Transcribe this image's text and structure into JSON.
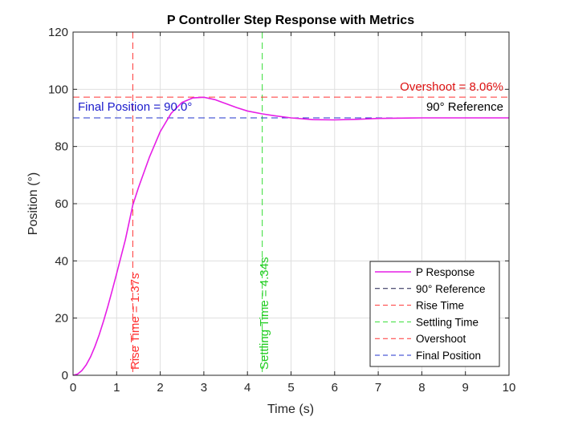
{
  "chart_data": {
    "type": "line",
    "title": "P Controller Step Response with Metrics",
    "xlabel": "Time (s)",
    "ylabel": "Position (°)",
    "xlim": [
      0,
      10
    ],
    "ylim": [
      0,
      120
    ],
    "xticks": [
      0,
      1,
      2,
      3,
      4,
      5,
      6,
      7,
      8,
      9,
      10
    ],
    "yticks": [
      0,
      20,
      40,
      60,
      80,
      100,
      120
    ],
    "grid": true,
    "legend_position": "bottom-right",
    "series": [
      {
        "name": "P Response",
        "color": "#e61ee6",
        "x": [
          0,
          0.1,
          0.2,
          0.3,
          0.4,
          0.5,
          0.6,
          0.7,
          0.8,
          0.9,
          1.0,
          1.2,
          1.37,
          1.5,
          1.75,
          2.0,
          2.25,
          2.5,
          2.75,
          3.0,
          3.25,
          3.5,
          3.75,
          4.0,
          4.34,
          4.6,
          5.0,
          5.5,
          6.0,
          6.5,
          7.0,
          8.0,
          9.0,
          10.0
        ],
        "y": [
          0,
          0.4,
          1.6,
          3.6,
          6.4,
          10.0,
          14.2,
          19.0,
          24.2,
          29.8,
          35.6,
          47.4,
          59.5,
          65.6,
          76.2,
          85.2,
          91.6,
          95.4,
          97.0,
          97.2,
          96.4,
          95.0,
          93.6,
          92.4,
          91.4,
          90.8,
          90.0,
          89.4,
          89.3,
          89.5,
          89.8,
          90.0,
          90.0,
          90.0
        ]
      }
    ],
    "reference_lines": [
      {
        "name": "90° Reference",
        "orientation": "horizontal",
        "value": 90,
        "color": "#1f1f4d",
        "style": "dashed"
      },
      {
        "name": "Rise Time",
        "orientation": "vertical",
        "value": 1.37,
        "color": "#ff3333",
        "style": "dashed"
      },
      {
        "name": "Settling Time",
        "orientation": "vertical",
        "value": 4.34,
        "color": "#33dd33",
        "style": "dashed"
      },
      {
        "name": "Overshoot",
        "orientation": "horizontal",
        "value": 97.25,
        "color": "#ff3333",
        "style": "dashed"
      },
      {
        "name": "Final Position",
        "orientation": "horizontal",
        "value": 90,
        "color": "#2233cc",
        "style": "dashed"
      }
    ],
    "annotations": {
      "overshoot": "Overshoot = 8.06%",
      "reference": "90° Reference",
      "final_position": "Final Position = 90.0°",
      "rise_time": "Rise Time = 1.37s",
      "settling_time": "Settling Time = 4.34s"
    },
    "legend": [
      "P Response",
      "90° Reference",
      "Rise Time",
      "Settling Time",
      "Overshoot",
      "Final Position"
    ]
  },
  "colors": {
    "response": "#e61ee6",
    "reference": "#1f1f4d",
    "rise": "#ff3333",
    "settling": "#33dd33",
    "overshoot": "#ff3333",
    "final": "#2233cc",
    "overshoot_text": "#dd1111",
    "final_text": "#1a1acc",
    "settling_text": "#22cc22"
  }
}
